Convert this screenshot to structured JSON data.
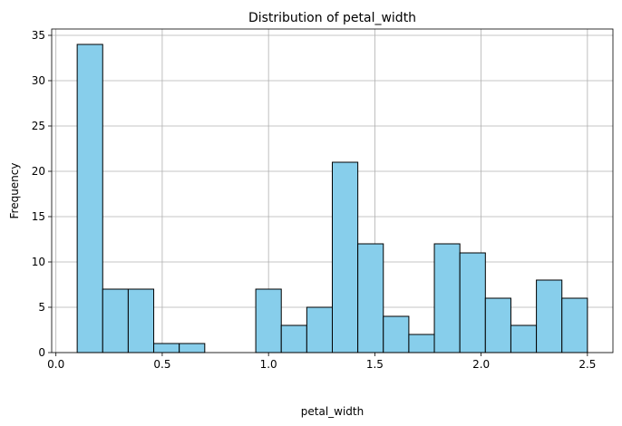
{
  "chart_data": {
    "type": "bar",
    "title": "Distribution of petal_width",
    "xlabel": "petal_width",
    "ylabel": "Frequency",
    "bin_edges": [
      0.1,
      0.22,
      0.34,
      0.46,
      0.58,
      0.7,
      0.82,
      0.94,
      1.06,
      1.18,
      1.3,
      1.42,
      1.54,
      1.66,
      1.78,
      1.9,
      2.02,
      2.14,
      2.26,
      2.38,
      2.5
    ],
    "values": [
      34,
      7,
      7,
      1,
      1,
      0,
      0,
      7,
      3,
      5,
      21,
      12,
      4,
      2,
      12,
      11,
      6,
      3,
      8,
      6
    ],
    "xlim": [
      -0.02,
      2.62
    ],
    "ylim": [
      0,
      35.7
    ],
    "xticks": [
      {
        "value": 0.0,
        "label": "0.0"
      },
      {
        "value": 0.5,
        "label": "0.5"
      },
      {
        "value": 1.0,
        "label": "1.0"
      },
      {
        "value": 1.5,
        "label": "1.5"
      },
      {
        "value": 2.0,
        "label": "2.0"
      },
      {
        "value": 2.5,
        "label": "2.5"
      }
    ],
    "yticks": [
      {
        "value": 0,
        "label": "0"
      },
      {
        "value": 5,
        "label": "5"
      },
      {
        "value": 10,
        "label": "10"
      },
      {
        "value": 15,
        "label": "15"
      },
      {
        "value": 20,
        "label": "20"
      },
      {
        "value": 25,
        "label": "25"
      },
      {
        "value": 30,
        "label": "30"
      },
      {
        "value": 35,
        "label": "35"
      }
    ],
    "grid": true,
    "colors": {
      "bar_fill": "#87ceeb",
      "bar_edge": "#000000",
      "grid": "#b0b0b0"
    }
  }
}
